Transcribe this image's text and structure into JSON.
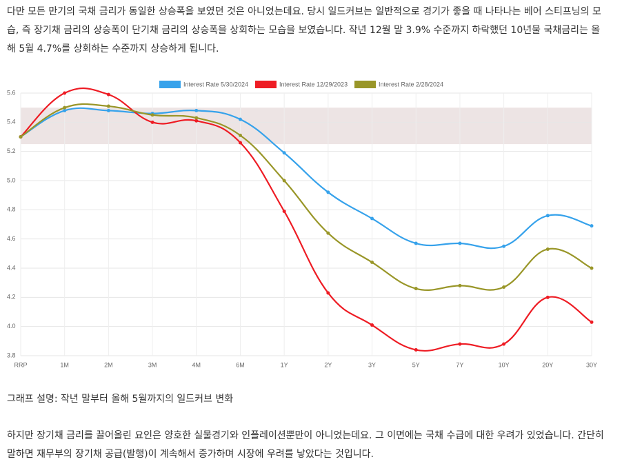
{
  "paragraphs": [
    "다만 모든 만기의 국채 금리가 동일한 상승폭을 보였던 것은 아니었는데요. 당시 일드커브는 일반적으로 경기가 좋을 때 나타나는 베어 스티프닝의 모습, 즉 장기채 금리의 상승폭이 단기채 금리의 상승폭을 상회하는 모습을 보였습니다. 작년 12월 말 3.9% 수준까지 하락했던 10년물 국채금리는 올해 5월 4.7%를 상회하는 수준까지 상승하게 됩니다."
  ],
  "chart_data": {
    "type": "line",
    "categories": [
      "RRP",
      "1M",
      "2M",
      "3M",
      "4M",
      "6M",
      "1Y",
      "2Y",
      "3Y",
      "5Y",
      "7Y",
      "10Y",
      "20Y",
      "30Y"
    ],
    "series": [
      {
        "name": "Interest Rate 5/30/2024",
        "color": "#36a2eb",
        "values": [
          5.3,
          5.48,
          5.48,
          5.46,
          5.48,
          5.42,
          5.19,
          4.92,
          4.74,
          4.57,
          4.57,
          4.55,
          4.76,
          4.69
        ]
      },
      {
        "name": "Interest Rate 12/29/2023",
        "color": "#ee1c24",
        "values": [
          5.3,
          5.6,
          5.59,
          5.4,
          5.41,
          5.26,
          4.79,
          4.23,
          4.01,
          3.84,
          3.88,
          3.88,
          4.2,
          4.03
        ]
      },
      {
        "name": "Interest Rate 2/28/2024",
        "color": "#999628",
        "values": [
          5.3,
          5.5,
          5.51,
          5.45,
          5.43,
          5.31,
          5.0,
          4.64,
          4.44,
          4.26,
          4.28,
          4.27,
          4.53,
          4.4
        ]
      }
    ],
    "shaded_range": [
      5.25,
      5.5
    ],
    "ylim": [
      3.8,
      5.6
    ],
    "yticks": [
      3.8,
      {
        "value": 4,
        "label": "4.0"
      },
      4.2,
      4.4,
      4.6,
      4.8,
      {
        "value": 5,
        "label": "5.0"
      },
      5.2,
      5.4,
      5.6
    ],
    "grid": true
  },
  "caption": "그래프 설명: 작년 말부터 올해 5월까지의 일드커브 변화",
  "closing": "하지만 장기채 금리를 끌어올린 요인은 양호한 실물경기와 인플레이션뿐만이 아니었는데요. 그 이면에는 국채 수급에 대한 우려가 있었습니다. 간단히 말하면 재무부의 장기채 공급(발행)이 계속해서 증가하며 시장에 우려를 낳았다는 것입니다."
}
